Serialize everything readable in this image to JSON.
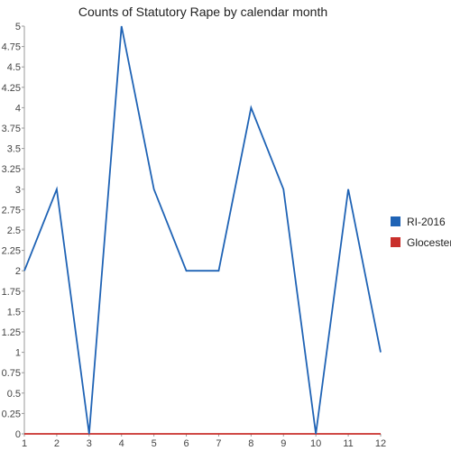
{
  "chart_data": {
    "type": "line",
    "title": "Counts of Statutory Rape by calendar month",
    "xlabel": "",
    "ylabel": "",
    "x": [
      1,
      2,
      3,
      4,
      5,
      6,
      7,
      8,
      9,
      10,
      11,
      12
    ],
    "x_ticks": [
      "1",
      "2",
      "3",
      "4",
      "5",
      "6",
      "7",
      "8",
      "9",
      "10",
      "11",
      "12"
    ],
    "xlim": [
      1,
      12
    ],
    "ylim": [
      0,
      5
    ],
    "y_ticks": [
      "0",
      "0.25",
      "0.5",
      "0.75",
      "1",
      "1.25",
      "1.5",
      "1.75",
      "2",
      "2.25",
      "2.5",
      "2.75",
      "3",
      "3.25",
      "3.5",
      "3.75",
      "4",
      "4.25",
      "4.5",
      "4.75",
      "5"
    ],
    "grid": false,
    "legend_position": "right",
    "series": [
      {
        "name": "RI-2016",
        "color": "#1f63b5",
        "values": [
          2,
          3,
          0,
          5,
          3,
          2,
          2,
          4,
          3,
          0,
          3,
          1
        ]
      },
      {
        "name": "Glocester",
        "color": "#c9302c",
        "values": [
          0,
          0,
          0,
          0,
          0,
          0,
          0,
          0,
          0,
          0,
          0,
          0
        ]
      }
    ]
  }
}
